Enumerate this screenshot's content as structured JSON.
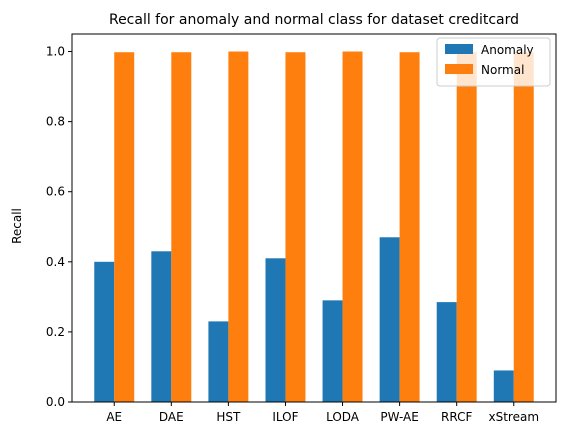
{
  "chart_data": {
    "type": "bar",
    "title": "Recall for anomaly and normal class for dataset creditcard",
    "xlabel": "",
    "ylabel": "Recall",
    "categories": [
      "AE",
      "DAE",
      "HST",
      "ILOF",
      "LODA",
      "PW-AE",
      "RRCF",
      "xStream"
    ],
    "series": [
      {
        "name": "Anomaly",
        "color": "#1f77b4",
        "values": [
          0.4,
          0.43,
          0.23,
          0.41,
          0.29,
          0.47,
          0.285,
          0.09
        ]
      },
      {
        "name": "Normal",
        "color": "#ff7f0e",
        "values": [
          0.998,
          0.998,
          1.0,
          0.998,
          1.0,
          0.998,
          0.998,
          0.998
        ]
      }
    ],
    "ylim": [
      0,
      1.05
    ],
    "yticks": [
      "0.0",
      "0.2",
      "0.4",
      "0.6",
      "0.8",
      "1.0"
    ],
    "grid": false,
    "legend_position": "top-right"
  }
}
